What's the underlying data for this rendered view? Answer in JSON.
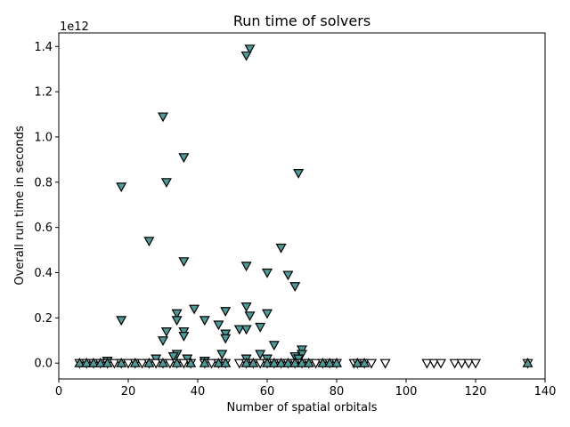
{
  "chart_data": {
    "type": "scatter",
    "title": "Run time of solvers",
    "xlabel": "Number of spatial orbitals",
    "ylabel": "Overall run time in seconds",
    "y_offset_label": "1e12",
    "xlim": [
      0,
      140
    ],
    "ylim": [
      -0.07,
      1.46
    ],
    "x_ticks": [
      "0",
      "20",
      "40",
      "60",
      "80",
      "100",
      "120",
      "140"
    ],
    "y_ticks": [
      "0.0",
      "0.2",
      "0.4",
      "0.6",
      "0.8",
      "1.0",
      "1.2",
      "1.4"
    ],
    "grid": false,
    "legend": "none",
    "series": [
      {
        "marker": "triangle-down",
        "fill": "#4f9a98",
        "points": [
          [
            55,
            1.39
          ],
          [
            54,
            1.36
          ],
          [
            30,
            1.09
          ],
          [
            36,
            0.91
          ],
          [
            69,
            0.84
          ],
          [
            31,
            0.8
          ],
          [
            18,
            0.78
          ],
          [
            26,
            0.54
          ],
          [
            64,
            0.51
          ],
          [
            36,
            0.45
          ],
          [
            54,
            0.43
          ],
          [
            60,
            0.4
          ],
          [
            66,
            0.39
          ],
          [
            68,
            0.34
          ],
          [
            54,
            0.25
          ],
          [
            39,
            0.24
          ],
          [
            48,
            0.23
          ],
          [
            60,
            0.22
          ],
          [
            34,
            0.22
          ],
          [
            55,
            0.21
          ],
          [
            34,
            0.19
          ],
          [
            42,
            0.19
          ],
          [
            18,
            0.19
          ],
          [
            46,
            0.17
          ],
          [
            58,
            0.16
          ],
          [
            52,
            0.15
          ],
          [
            54,
            0.15
          ],
          [
            31,
            0.14
          ],
          [
            36,
            0.14
          ],
          [
            48,
            0.13
          ],
          [
            36,
            0.12
          ],
          [
            48,
            0.11
          ],
          [
            30,
            0.1
          ],
          [
            62,
            0.08
          ],
          [
            70,
            0.06
          ],
          [
            34,
            0.04
          ],
          [
            47,
            0.04
          ],
          [
            58,
            0.04
          ],
          [
            70,
            0.04
          ],
          [
            33,
            0.03
          ],
          [
            68,
            0.03
          ],
          [
            28,
            0.02
          ],
          [
            37,
            0.02
          ],
          [
            54,
            0.02
          ],
          [
            60,
            0.02
          ],
          [
            14,
            0.01
          ],
          [
            42,
            0.01
          ],
          [
            69,
            0.02
          ]
        ]
      },
      {
        "marker": "triangle-down",
        "fill": "#ffffff",
        "points": [
          [
            6,
            0.0
          ],
          [
            8,
            0.0
          ],
          [
            10,
            0.0
          ],
          [
            12,
            0.0
          ],
          [
            14,
            0.0
          ],
          [
            16,
            0.0
          ],
          [
            18,
            0.0
          ],
          [
            20,
            0.0
          ],
          [
            22,
            0.0
          ],
          [
            24,
            0.0
          ],
          [
            26,
            0.0
          ],
          [
            28,
            0.0
          ],
          [
            30,
            0.0
          ],
          [
            32,
            0.0
          ],
          [
            34,
            0.0
          ],
          [
            36,
            0.0
          ],
          [
            38,
            0.0
          ],
          [
            42,
            0.0
          ],
          [
            44,
            0.0
          ],
          [
            46,
            0.0
          ],
          [
            48,
            0.0
          ],
          [
            52,
            0.0
          ],
          [
            54,
            0.0
          ],
          [
            56,
            0.0
          ],
          [
            58,
            0.0
          ],
          [
            60,
            0.0
          ],
          [
            62,
            0.0
          ],
          [
            64,
            0.0
          ],
          [
            66,
            0.0
          ],
          [
            68,
            0.0
          ],
          [
            70,
            0.0
          ],
          [
            72,
            0.0
          ],
          [
            74,
            0.0
          ],
          [
            76,
            0.0
          ],
          [
            78,
            0.0
          ],
          [
            80,
            0.0
          ],
          [
            85,
            0.0
          ],
          [
            86,
            0.0
          ],
          [
            88,
            0.0
          ],
          [
            90,
            0.0
          ],
          [
            94,
            0.0
          ],
          [
            106,
            0.0
          ],
          [
            108,
            0.0
          ],
          [
            110,
            0.0
          ],
          [
            114,
            0.0
          ],
          [
            116,
            0.0
          ],
          [
            118,
            0.0
          ],
          [
            120,
            0.0
          ],
          [
            135,
            0.0
          ]
        ]
      },
      {
        "marker": "triangle-up",
        "fill": "#4f9a98",
        "points": [
          [
            6,
            0.0
          ],
          [
            8,
            0.0
          ],
          [
            10,
            0.0
          ],
          [
            12,
            0.0
          ],
          [
            14,
            0.0
          ],
          [
            18,
            0.0
          ],
          [
            22,
            0.0
          ],
          [
            26,
            0.0
          ],
          [
            30,
            0.0
          ],
          [
            34,
            0.0
          ],
          [
            38,
            0.0
          ],
          [
            42,
            0.0
          ],
          [
            46,
            0.0
          ],
          [
            48,
            0.0
          ],
          [
            54,
            0.0
          ],
          [
            56,
            0.0
          ],
          [
            60,
            0.0
          ],
          [
            62,
            0.0
          ],
          [
            64,
            0.0
          ],
          [
            66,
            0.0
          ],
          [
            68,
            0.0
          ],
          [
            70,
            0.0
          ],
          [
            72,
            0.0
          ],
          [
            76,
            0.0
          ],
          [
            78,
            0.0
          ],
          [
            80,
            0.0
          ],
          [
            86,
            0.0
          ],
          [
            88,
            0.0
          ],
          [
            135,
            0.0
          ]
        ]
      }
    ]
  }
}
